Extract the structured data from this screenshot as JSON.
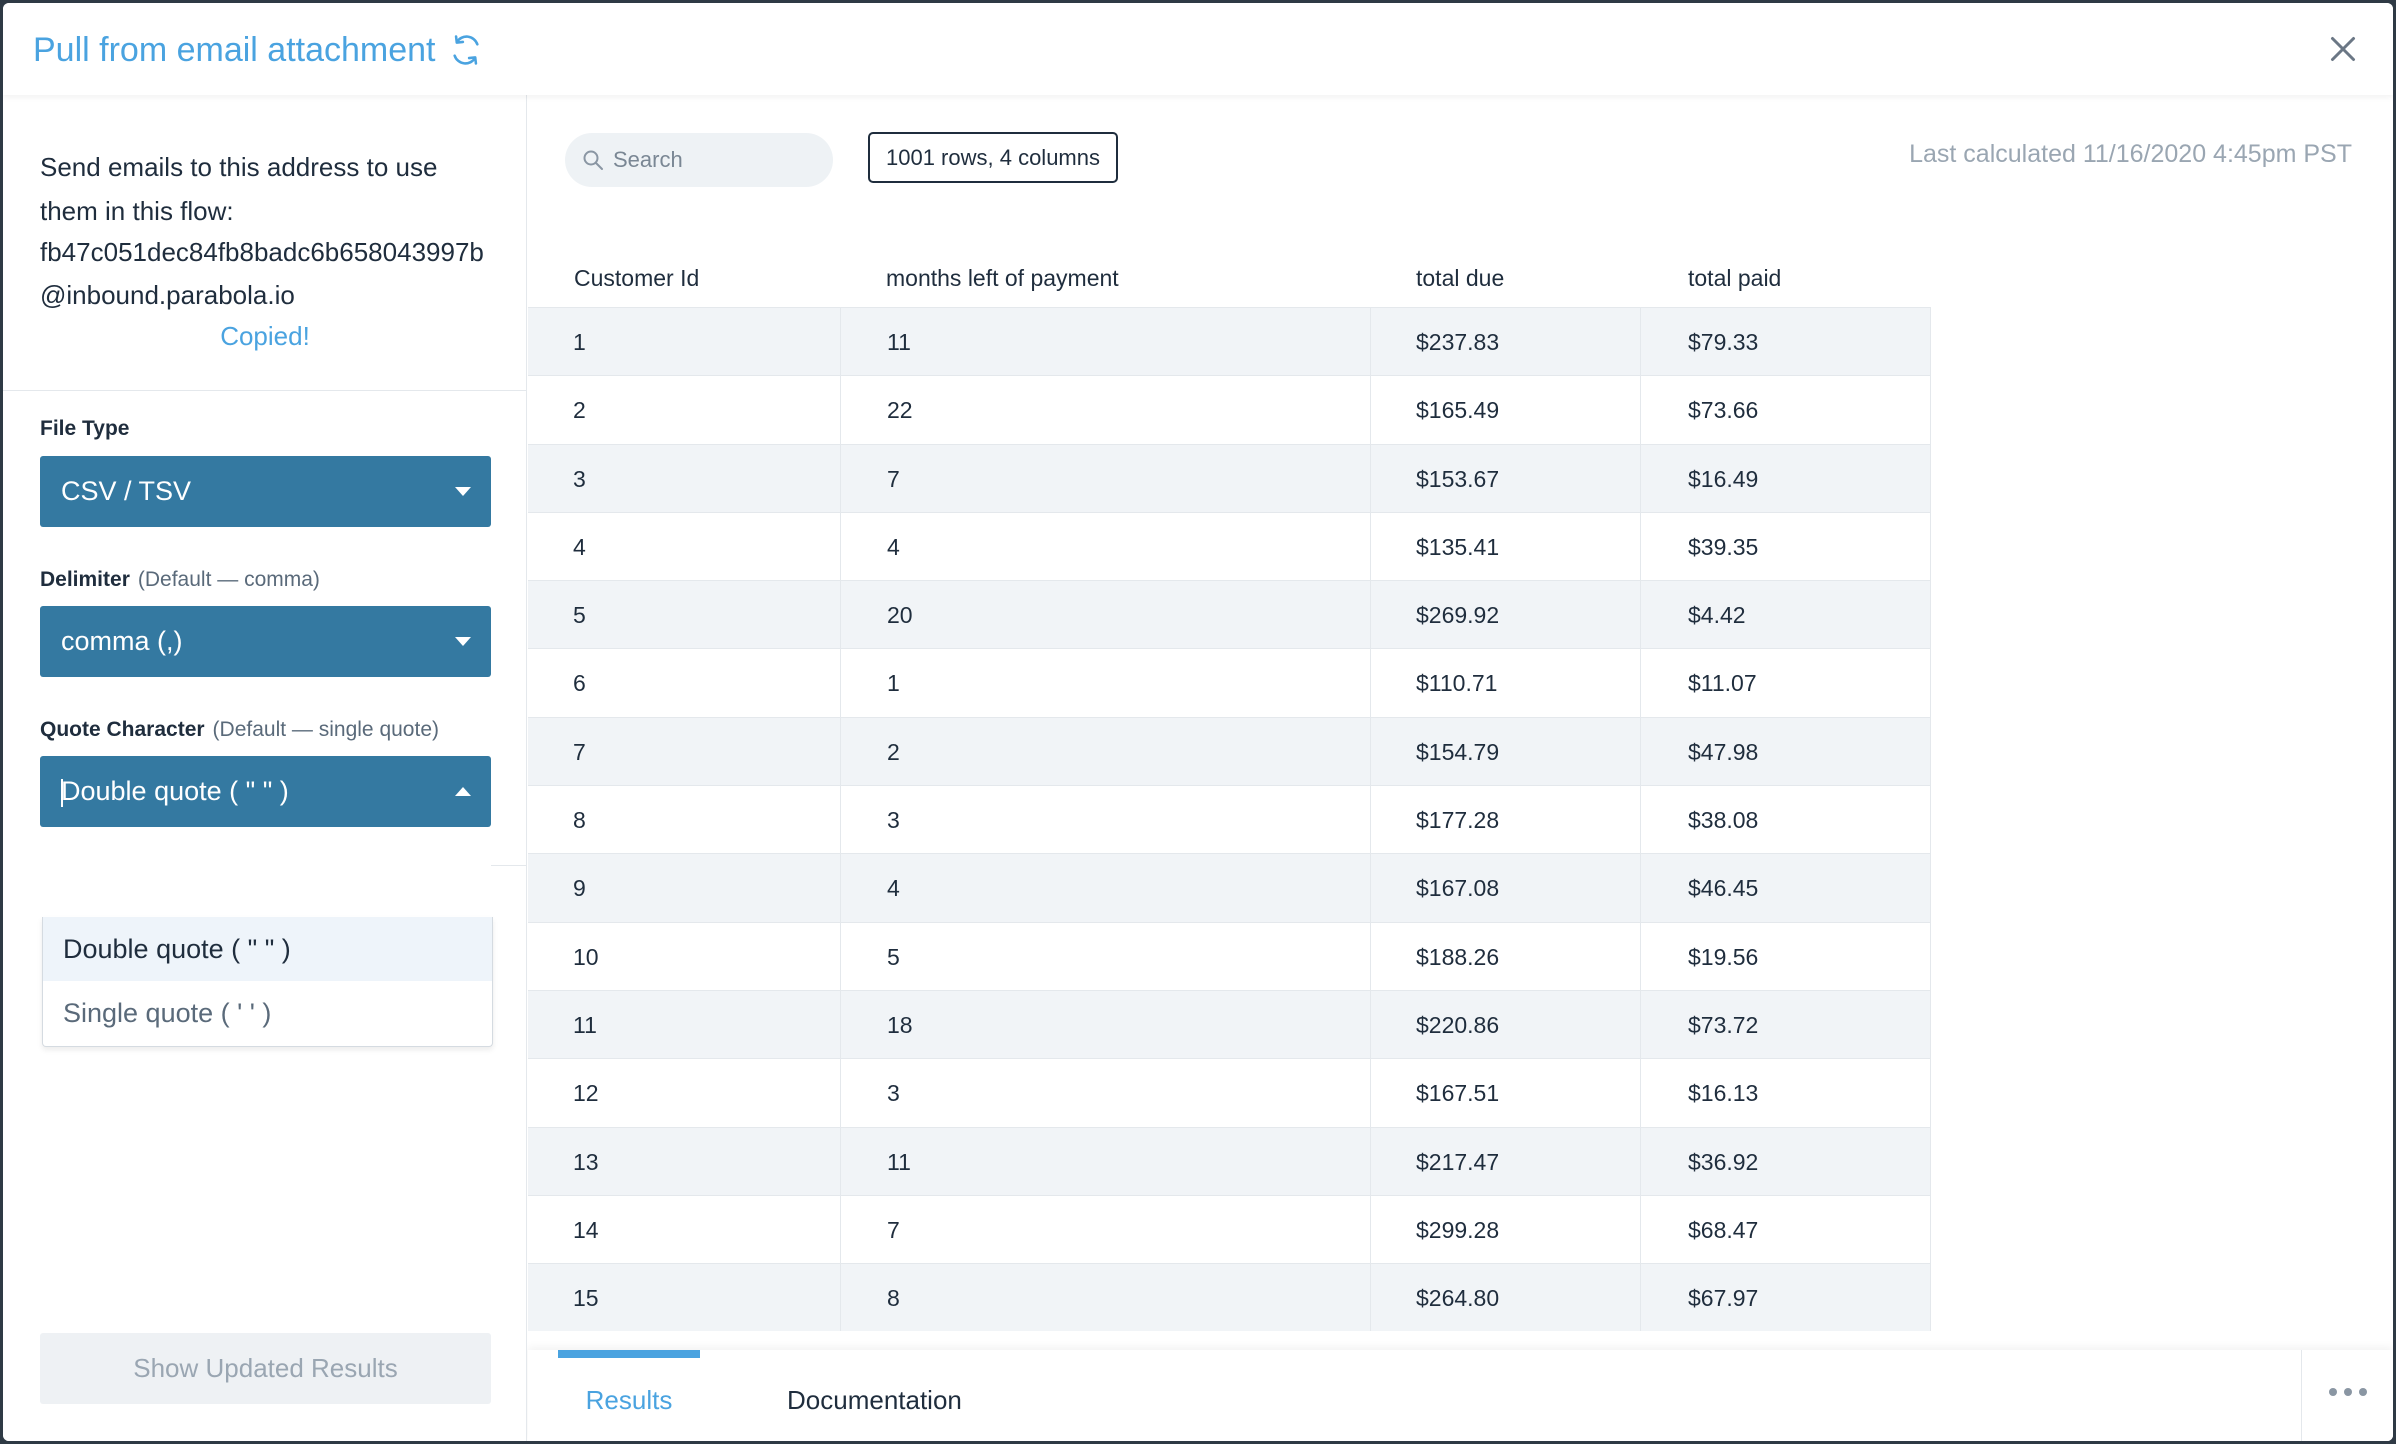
{
  "header": {
    "title": "Pull from email attachment",
    "refresh_icon": "refresh-icon",
    "close_icon": "close-icon"
  },
  "sidebar": {
    "instructions": "Send emails to this address to use them in this flow:",
    "email_address": "fb47c051dec84fb8badc6b658043997b@inbound.parabola.io",
    "copied_label": "Copied!",
    "file_type": {
      "label": "File Type",
      "value": "CSV / TSV"
    },
    "delimiter": {
      "label": "Delimiter",
      "hint": "(Default — comma)",
      "value": "comma (,)"
    },
    "quote_character": {
      "label": "Quote Character",
      "hint": "(Default — single quote)",
      "value": "Double quote ( \" \" )",
      "options": [
        "Double quote ( \" \" )",
        "Single quote ( ' ' )"
      ]
    },
    "show_updated_label": "Show Updated Results"
  },
  "toolbar": {
    "search_placeholder": "Search",
    "row_info": "1001 rows, 4 columns",
    "last_calculated": "Last calculated 11/16/2020 4:45pm PST"
  },
  "table": {
    "columns": [
      "Customer Id",
      "months left of payment",
      "total due",
      "total paid"
    ],
    "rows": [
      [
        "1",
        "11",
        "$237.83",
        "$79.33"
      ],
      [
        "2",
        "22",
        "$165.49",
        "$73.66"
      ],
      [
        "3",
        "7",
        "$153.67",
        "$16.49"
      ],
      [
        "4",
        "4",
        "$135.41",
        "$39.35"
      ],
      [
        "5",
        "20",
        "$269.92",
        "$4.42"
      ],
      [
        "6",
        "1",
        "$110.71",
        "$11.07"
      ],
      [
        "7",
        "2",
        "$154.79",
        "$47.98"
      ],
      [
        "8",
        "3",
        "$177.28",
        "$38.08"
      ],
      [
        "9",
        "4",
        "$167.08",
        "$46.45"
      ],
      [
        "10",
        "5",
        "$188.26",
        "$19.56"
      ],
      [
        "11",
        "18",
        "$220.86",
        "$73.72"
      ],
      [
        "12",
        "3",
        "$167.51",
        "$16.13"
      ],
      [
        "13",
        "11",
        "$217.47",
        "$36.92"
      ],
      [
        "14",
        "7",
        "$299.28",
        "$68.47"
      ],
      [
        "15",
        "8",
        "$264.80",
        "$67.97"
      ]
    ]
  },
  "tabs": [
    {
      "label": "Results",
      "active": true
    },
    {
      "label": "Documentation",
      "active": false
    }
  ],
  "colors": {
    "accent": "#4aa3e0",
    "select_bg": "#3479a1",
    "zebra": "#f1f4f7"
  }
}
